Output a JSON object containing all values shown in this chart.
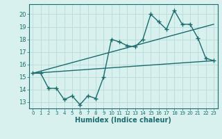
{
  "xlabel": "Humidex (Indice chaleur)",
  "ylabel": "",
  "bg_color": "#d8f0ee",
  "grid_color": "#b8dcd8",
  "line_color": "#1a6b6b",
  "x_ticks": [
    0,
    1,
    2,
    3,
    4,
    5,
    6,
    7,
    8,
    9,
    10,
    11,
    12,
    13,
    14,
    15,
    16,
    17,
    18,
    19,
    20,
    21,
    22,
    23
  ],
  "y_ticks": [
    13,
    14,
    15,
    16,
    17,
    18,
    19,
    20
  ],
  "ylim": [
    12.5,
    20.8
  ],
  "xlim": [
    -0.5,
    23.5
  ],
  "series1_x": [
    0,
    1,
    2,
    3,
    4,
    5,
    6,
    7,
    8,
    9,
    10,
    11,
    12,
    13,
    14,
    15,
    16,
    17,
    18,
    19,
    20,
    21,
    22,
    23
  ],
  "series1_y": [
    15.3,
    15.3,
    14.1,
    14.1,
    13.2,
    13.5,
    12.8,
    13.5,
    13.3,
    15.0,
    18.0,
    17.8,
    17.5,
    17.4,
    18.0,
    20.0,
    19.4,
    18.8,
    20.3,
    19.2,
    19.2,
    18.1,
    16.5,
    16.3
  ],
  "series2_x": [
    0,
    23
  ],
  "series2_y": [
    15.3,
    19.2
  ],
  "series3_x": [
    0,
    23
  ],
  "series3_y": [
    15.3,
    16.3
  ],
  "marker_size": 4,
  "linewidth": 1.0
}
